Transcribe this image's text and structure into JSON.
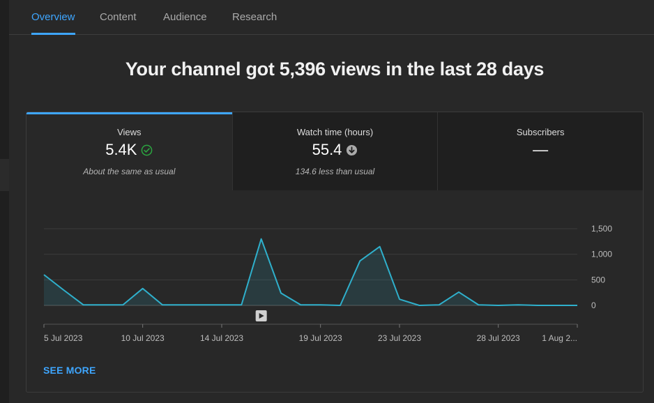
{
  "tabs": [
    {
      "label": "Overview",
      "active": true
    },
    {
      "label": "Content",
      "active": false
    },
    {
      "label": "Audience",
      "active": false
    },
    {
      "label": "Research",
      "active": false
    }
  ],
  "headline": "Your channel got 5,396 views in the last 28 days",
  "metrics": [
    {
      "label": "Views",
      "value": "5.4K",
      "note": "About the same as usual",
      "icon": "check-circle-icon",
      "selected": true
    },
    {
      "label": "Watch time (hours)",
      "value": "55.4",
      "note": "134.6 less than usual",
      "icon": "arrow-down-circle-icon",
      "selected": false
    },
    {
      "label": "Subscribers",
      "value": "—",
      "note": "",
      "icon": "",
      "selected": false
    }
  ],
  "colors": {
    "accent": "#3ea6ff",
    "line": "#2fb0cc",
    "positive": "#2ba640",
    "background": "#282828"
  },
  "chart_data": {
    "type": "area",
    "x_ticks": [
      "5 Jul 2023",
      "10 Jul 2023",
      "14 Jul 2023",
      "19 Jul 2023",
      "23 Jul 2023",
      "28 Jul 2023",
      "1 Aug 2..."
    ],
    "y_ticks": [
      "1,500",
      "1,000",
      "500",
      "0"
    ],
    "ylim": [
      0,
      1500
    ],
    "x": [
      "5 Jul 2023",
      "6 Jul 2023",
      "7 Jul 2023",
      "8 Jul 2023",
      "9 Jul 2023",
      "10 Jul 2023",
      "11 Jul 2023",
      "12 Jul 2023",
      "13 Jul 2023",
      "14 Jul 2023",
      "15 Jul 2023",
      "16 Jul 2023",
      "17 Jul 2023",
      "18 Jul 2023",
      "19 Jul 2023",
      "20 Jul 2023",
      "21 Jul 2023",
      "22 Jul 2023",
      "23 Jul 2023",
      "24 Jul 2023",
      "25 Jul 2023",
      "26 Jul 2023",
      "27 Jul 2023",
      "28 Jul 2023",
      "29 Jul 2023",
      "30 Jul 2023",
      "31 Jul 2023",
      "1 Aug 2023"
    ],
    "series": [
      {
        "values": [
          600,
          300,
          10,
          10,
          10,
          330,
          10,
          10,
          10,
          10,
          10,
          1300,
          240,
          10,
          10,
          0,
          870,
          1150,
          120,
          0,
          10,
          260,
          10,
          0,
          10,
          0,
          0,
          0
        ]
      }
    ],
    "grid": true,
    "annotation_icon": "play-icon"
  },
  "see_more": "SEE MORE"
}
